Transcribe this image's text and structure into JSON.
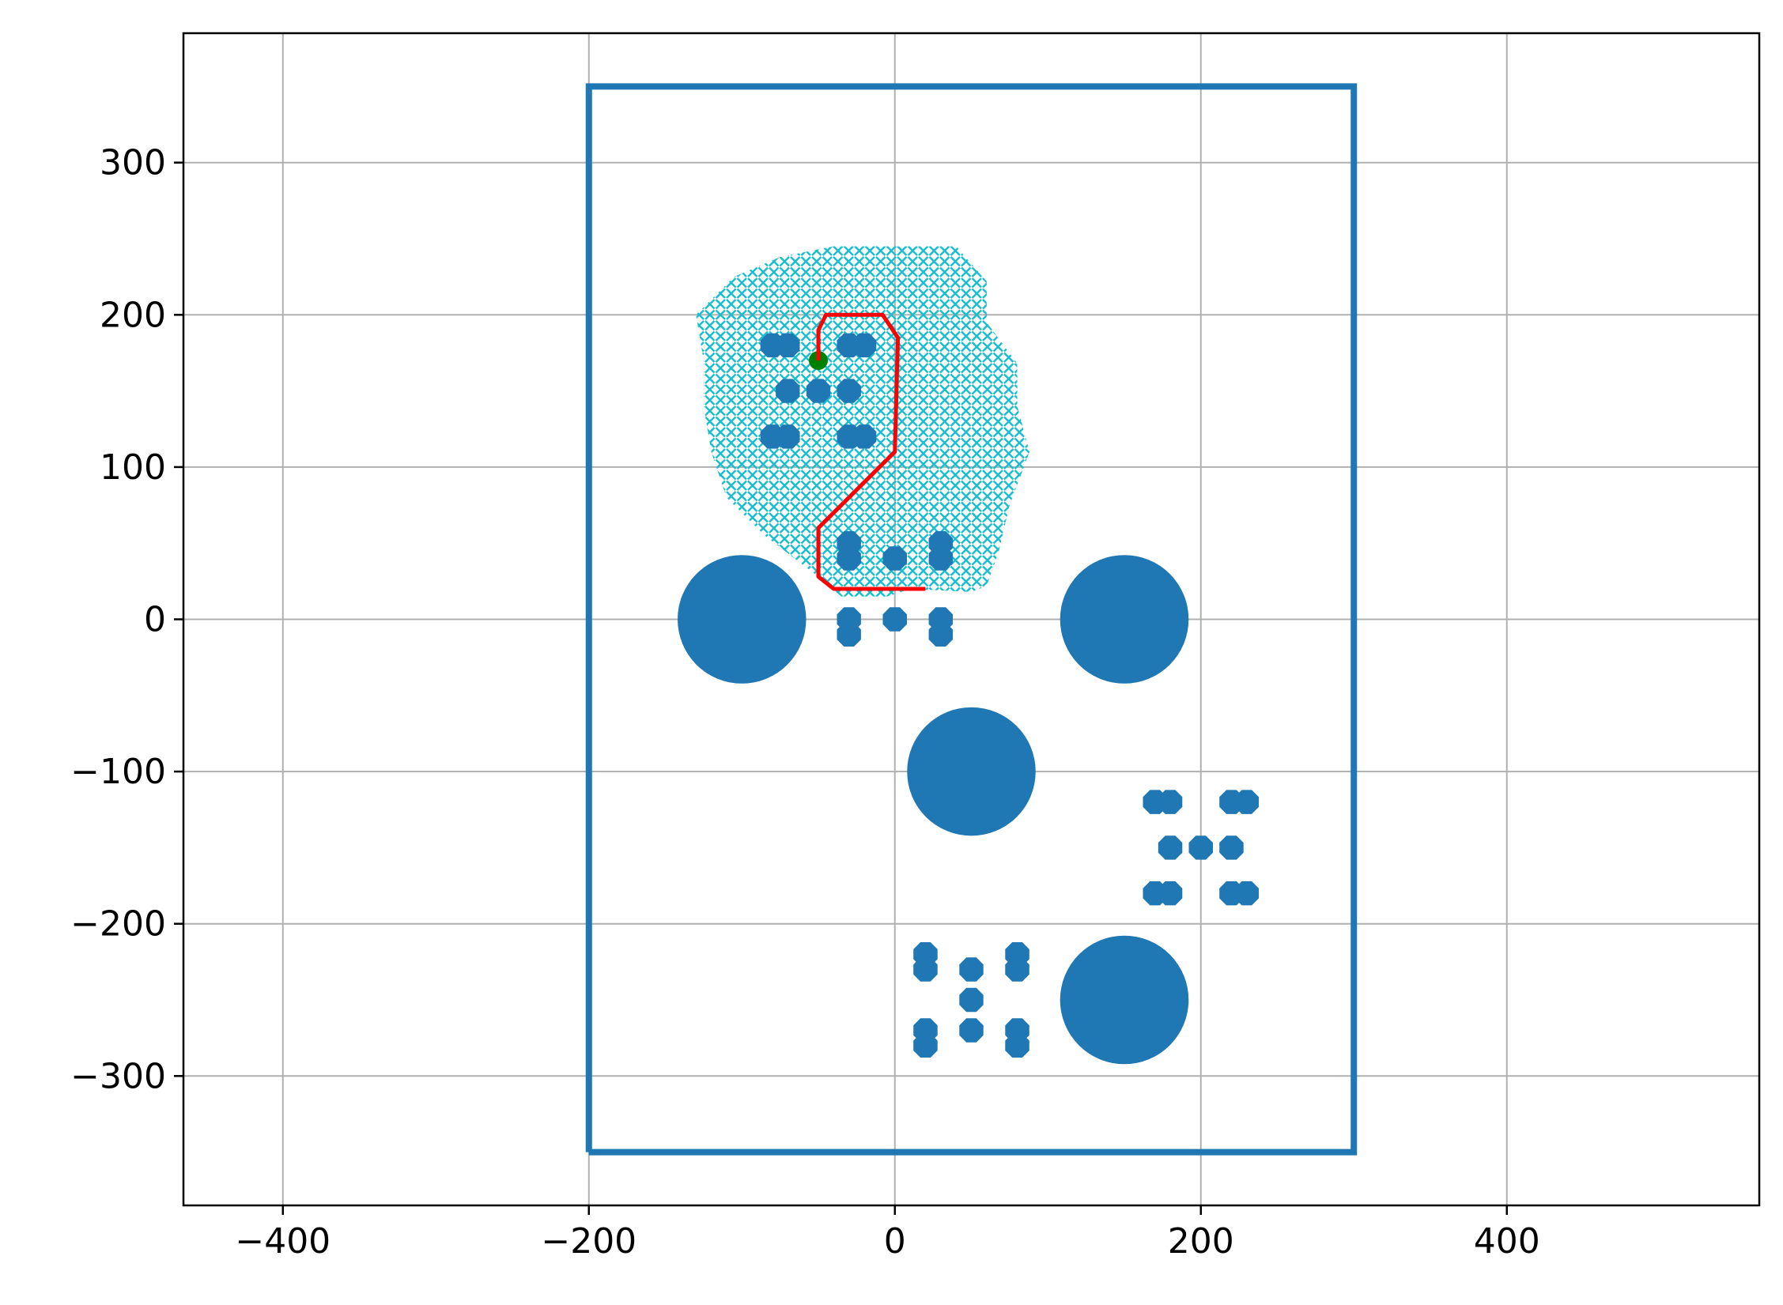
{
  "chart_data": {
    "type": "scatter",
    "title": "",
    "xlabel": "",
    "ylabel": "",
    "xlim": [
      -465,
      565
    ],
    "ylim": [
      -385,
      385
    ],
    "grid": true,
    "xticks": [
      -400,
      -200,
      0,
      200,
      400
    ],
    "yticks": [
      -300,
      -200,
      -100,
      0,
      100,
      200,
      300
    ],
    "xtick_labels": [
      "−400",
      "−200",
      "0",
      "200",
      "400"
    ],
    "ytick_labels": [
      "−300",
      "−200",
      "−100",
      "0",
      "100",
      "200",
      "300"
    ],
    "colors": {
      "boundary": "#1f77b4",
      "obstacles": "#1f77b4",
      "explored": "#17becf",
      "path": "#ff0000",
      "goal": "#008000"
    },
    "boundary": [
      [
        -200,
        -350
      ],
      [
        -200,
        350
      ],
      [
        300,
        350
      ],
      [
        300,
        -350
      ],
      [
        -200,
        -350
      ]
    ],
    "large_obstacles": [
      {
        "x": -100,
        "y": 0,
        "r": 42
      },
      {
        "x": 150,
        "y": 0,
        "r": 42
      },
      {
        "x": 50,
        "y": -100,
        "r": 42
      },
      {
        "x": 150,
        "y": -250,
        "r": 42
      }
    ],
    "small_obstacles": [
      {
        "x": -80,
        "y": 180
      },
      {
        "x": -70,
        "y": 180
      },
      {
        "x": -30,
        "y": 180
      },
      {
        "x": -20,
        "y": 180
      },
      {
        "x": -70,
        "y": 150
      },
      {
        "x": -50,
        "y": 150
      },
      {
        "x": -30,
        "y": 150
      },
      {
        "x": -80,
        "y": 120
      },
      {
        "x": -70,
        "y": 120
      },
      {
        "x": -30,
        "y": 120
      },
      {
        "x": -20,
        "y": 120
      },
      {
        "x": -30,
        "y": 50
      },
      {
        "x": -30,
        "y": 40
      },
      {
        "x": 30,
        "y": 50
      },
      {
        "x": 30,
        "y": 40
      },
      {
        "x": 0,
        "y": 40
      },
      {
        "x": -30,
        "y": 0
      },
      {
        "x": -30,
        "y": -10
      },
      {
        "x": 0,
        "y": 0
      },
      {
        "x": 30,
        "y": 0
      },
      {
        "x": 30,
        "y": -10
      },
      {
        "x": 170,
        "y": -120
      },
      {
        "x": 180,
        "y": -120
      },
      {
        "x": 220,
        "y": -120
      },
      {
        "x": 230,
        "y": -120
      },
      {
        "x": 180,
        "y": -150
      },
      {
        "x": 200,
        "y": -150
      },
      {
        "x": 220,
        "y": -150
      },
      {
        "x": 170,
        "y": -180
      },
      {
        "x": 180,
        "y": -180
      },
      {
        "x": 220,
        "y": -180
      },
      {
        "x": 230,
        "y": -180
      },
      {
        "x": 20,
        "y": -220
      },
      {
        "x": 20,
        "y": -230
      },
      {
        "x": 50,
        "y": -230
      },
      {
        "x": 80,
        "y": -220
      },
      {
        "x": 80,
        "y": -230
      },
      {
        "x": 50,
        "y": -250
      },
      {
        "x": 50,
        "y": -270
      },
      {
        "x": 20,
        "y": -270
      },
      {
        "x": 20,
        "y": -280
      },
      {
        "x": 80,
        "y": -270
      },
      {
        "x": 80,
        "y": -280
      }
    ],
    "explored_region": {
      "marker": "x",
      "outline": [
        [
          -40,
          245
        ],
        [
          40,
          245
        ],
        [
          60,
          222
        ],
        [
          60,
          195
        ],
        [
          80,
          168
        ],
        [
          80,
          140
        ],
        [
          88,
          110
        ],
        [
          75,
          75
        ],
        [
          68,
          45
        ],
        [
          60,
          22
        ],
        [
          50,
          18
        ],
        [
          10,
          20
        ],
        [
          -5,
          15
        ],
        [
          -35,
          15
        ],
        [
          -50,
          28
        ],
        [
          -85,
          55
        ],
        [
          -110,
          80
        ],
        [
          -120,
          110
        ],
        [
          -125,
          140
        ],
        [
          -125,
          170
        ],
        [
          -130,
          200
        ],
        [
          -105,
          225
        ],
        [
          -75,
          238
        ]
      ]
    },
    "path": [
      [
        20,
        20
      ],
      [
        -40,
        20
      ],
      [
        -50,
        28
      ],
      [
        -50,
        60
      ],
      [
        0,
        110
      ],
      [
        2,
        185
      ],
      [
        -8,
        200
      ],
      [
        -45,
        200
      ],
      [
        -50,
        190
      ],
      [
        -50,
        170
      ]
    ],
    "goal": {
      "x": -50,
      "y": 170
    }
  }
}
